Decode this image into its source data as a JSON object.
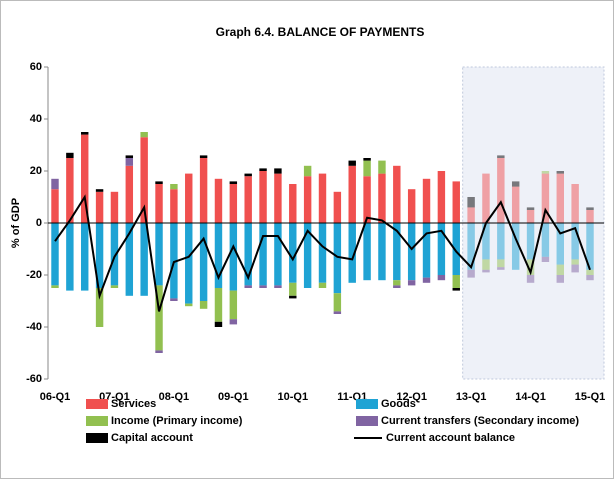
{
  "chart_data": {
    "type": "stacked_bar_line",
    "title": "Graph 6.4. BALANCE OF PAYMENTS",
    "y_label": "% of GDP",
    "categories": [
      "06-Q1",
      null,
      null,
      null,
      "07-Q1",
      null,
      null,
      null,
      "08-Q1",
      null,
      null,
      null,
      "09-Q1",
      null,
      null,
      null,
      "10-Q1",
      null,
      null,
      null,
      "11-Q1",
      null,
      null,
      null,
      "12-Q1",
      null,
      null,
      null,
      "13-Q1",
      null,
      null,
      null,
      "14-Q1",
      null,
      null,
      null,
      "15-Q1"
    ],
    "ylim": [
      -60,
      60
    ],
    "yticks": [
      -60,
      -40,
      -20,
      0,
      20,
      40,
      60
    ],
    "forecast_start": 28,
    "series": [
      {
        "name": "Services",
        "color": "#f0504f",
        "values": [
          13,
          25,
          34,
          12,
          12,
          22,
          33,
          15,
          13,
          19,
          25,
          17,
          15,
          18,
          20,
          19,
          15,
          18,
          19,
          12,
          22,
          18,
          19,
          22,
          13,
          17,
          20,
          16,
          6,
          19,
          25,
          14,
          5,
          19,
          19,
          15,
          5
        ]
      },
      {
        "name": "Goods",
        "color": "#1fa3d4",
        "values": [
          -24,
          -26,
          -26,
          -25,
          -24,
          -28,
          -28,
          -24,
          -29,
          -31,
          -30,
          -25,
          -26,
          -24,
          -24,
          -24,
          -23,
          -25,
          -23,
          -27,
          -23,
          -22,
          -22,
          -22,
          -22,
          -21,
          -20,
          -20,
          -18,
          -14,
          -14,
          -18,
          -14,
          -13,
          -16,
          -14,
          -18
        ]
      },
      {
        "name": "Income (Primary income)",
        "color": "#92c050",
        "values": [
          -1,
          0,
          0,
          -15,
          -1,
          0,
          2,
          -25,
          2,
          -1,
          -3,
          -13,
          -11,
          0,
          0,
          0,
          -5,
          4,
          -2,
          -7,
          0,
          6,
          5,
          -2,
          0,
          0,
          0,
          -5,
          0,
          -4,
          -3,
          0,
          -6,
          1,
          -4,
          -2,
          -2
        ]
      },
      {
        "name": "Current transfers (Secondary income)",
        "color": "#8064a2",
        "values": [
          4,
          0,
          0,
          0,
          0,
          3,
          0,
          -1,
          -1,
          0,
          0,
          0,
          -2,
          -1,
          -1,
          -1,
          0,
          0,
          0,
          -1,
          0,
          0,
          0,
          -1,
          -2,
          -2,
          -2,
          0,
          -3,
          -1,
          -1,
          0,
          -3,
          -2,
          -3,
          -3,
          -2
        ]
      },
      {
        "name": "Capital account",
        "color": "#000000",
        "values": [
          0,
          2,
          1,
          1,
          0,
          1,
          0,
          1,
          0,
          0,
          1,
          -2,
          1,
          1,
          1,
          2,
          -1,
          0,
          0,
          0,
          2,
          1,
          0,
          0,
          0,
          0,
          0,
          -1,
          4,
          0,
          1,
          2,
          1,
          0,
          1,
          0,
          1
        ]
      },
      {
        "name": "Current account balance",
        "color": "#000000",
        "kind": "line",
        "values": [
          -7,
          1,
          10,
          -28,
          -13,
          -4,
          6,
          -34,
          -15,
          -13,
          -6,
          -21,
          -9,
          -21,
          -5,
          -5,
          -14,
          -3,
          -9,
          -13,
          -14,
          2,
          1,
          -3,
          -10,
          -4,
          -3,
          -11,
          -17,
          0,
          8,
          -6,
          -19,
          5,
          -4,
          -2,
          -18
        ]
      }
    ]
  }
}
